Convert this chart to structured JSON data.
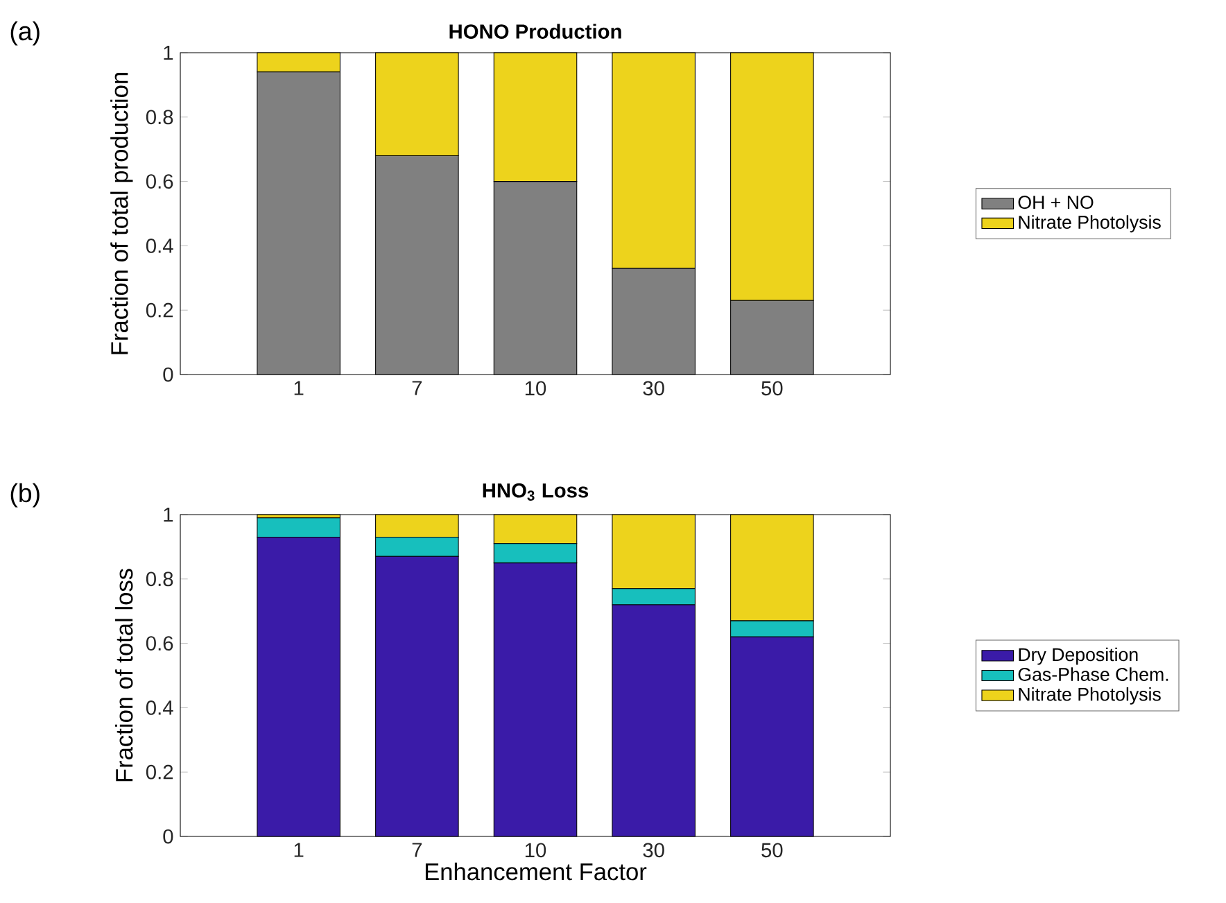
{
  "chart_data": [
    {
      "type": "bar",
      "stacked": true,
      "title": "HONO Production",
      "ylabel": "Fraction of total production",
      "annotations": [
        "(a)"
      ],
      "categories": [
        "1",
        "7",
        "10",
        "30",
        "50"
      ],
      "series": [
        {
          "name": "OH + NO",
          "color": "#808080",
          "values": [
            0.94,
            0.68,
            0.6,
            0.33,
            0.23
          ]
        },
        {
          "name": "Nitrate Photolysis",
          "color": "#edd31c",
          "values": [
            0.06,
            0.32,
            0.4,
            0.67,
            0.77
          ]
        }
      ],
      "ylim": [
        0,
        1
      ],
      "yticks": [
        0,
        0.2,
        0.4,
        0.6,
        0.8,
        1
      ],
      "legend": "right"
    },
    {
      "type": "bar",
      "stacked": true,
      "title": "HNO$_{3}$ Loss",
      "ylabel": "Fraction of total loss",
      "xlabel": "Enhancement Factor",
      "annotations": [
        "(b)"
      ],
      "categories": [
        "1",
        "7",
        "10",
        "30",
        "50"
      ],
      "series": [
        {
          "name": "Dry Deposition",
          "color": "#3a1ba8",
          "values": [
            0.93,
            0.87,
            0.85,
            0.72,
            0.62
          ]
        },
        {
          "name": "Gas-Phase Chem.",
          "color": "#17bfbd",
          "values": [
            0.06,
            0.06,
            0.06,
            0.05,
            0.05
          ]
        },
        {
          "name": "Nitrate Photolysis",
          "color": "#edd31c",
          "values": [
            0.01,
            0.07,
            0.09,
            0.23,
            0.33
          ]
        }
      ],
      "ylim": [
        0,
        1
      ],
      "yticks": [
        0,
        0.2,
        0.4,
        0.6,
        0.8,
        1
      ],
      "legend": "right"
    }
  ]
}
